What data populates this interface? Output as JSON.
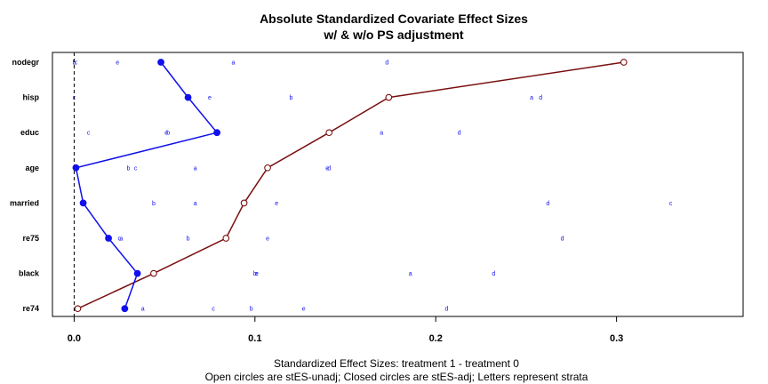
{
  "chart_data": {
    "type": "scatter",
    "title": "Absolute Standardized Covariate Effect Sizes",
    "subtitle": "w/ & w/o PS adjustment",
    "xlabel": "Standardized Effect Sizes: treatment 1 - treatment  0",
    "caption": "Open circles are stES-unadj; Closed circles are stES-adj; Letters represent strata",
    "xlim": [
      -0.012,
      0.37
    ],
    "x_ticks": [
      "0.0",
      "0.1",
      "0.2",
      "0.3"
    ],
    "x_tick_values": [
      0.0,
      0.1,
      0.2,
      0.3
    ],
    "reference_line_x": 0,
    "categories": [
      "nodegr",
      "hisp",
      "educ",
      "age",
      "married",
      "re75",
      "black",
      "re74"
    ],
    "series": [
      {
        "name": "stES-unadj",
        "marker": "open-circle",
        "color": "#7a1010",
        "values": [
          0.304,
          0.174,
          0.141,
          0.107,
          0.094,
          0.084,
          0.044,
          0.002
        ]
      },
      {
        "name": "stES-adj",
        "marker": "closed-circle",
        "color": "#1010ee",
        "values": [
          0.048,
          0.063,
          0.079,
          0.001,
          0.005,
          0.019,
          0.035,
          0.028
        ]
      }
    ],
    "strata": [
      {
        "row": "nodegr",
        "letter": "a",
        "x": 0.088
      },
      {
        "row": "nodegr",
        "letter": "b",
        "x": 0.0
      },
      {
        "row": "nodegr",
        "letter": "c",
        "x": 0.001
      },
      {
        "row": "nodegr",
        "letter": "d",
        "x": 0.173
      },
      {
        "row": "nodegr",
        "letter": "e",
        "x": 0.024
      },
      {
        "row": "hisp",
        "letter": "a",
        "x": 0.253
      },
      {
        "row": "hisp",
        "letter": "b",
        "x": 0.12
      },
      {
        "row": "hisp",
        "letter": "c",
        "x": 0.0
      },
      {
        "row": "hisp",
        "letter": "d",
        "x": 0.258
      },
      {
        "row": "hisp",
        "letter": "e",
        "x": 0.075
      },
      {
        "row": "educ",
        "letter": "a",
        "x": 0.17
      },
      {
        "row": "educ",
        "letter": "b",
        "x": 0.052
      },
      {
        "row": "educ",
        "letter": "c",
        "x": 0.008
      },
      {
        "row": "educ",
        "letter": "d",
        "x": 0.213
      },
      {
        "row": "educ",
        "letter": "e",
        "x": 0.051
      },
      {
        "row": "age",
        "letter": "a",
        "x": 0.067
      },
      {
        "row": "age",
        "letter": "b",
        "x": 0.03
      },
      {
        "row": "age",
        "letter": "c",
        "x": 0.034
      },
      {
        "row": "age",
        "letter": "d",
        "x": 0.141
      },
      {
        "row": "age",
        "letter": "e",
        "x": 0.14
      },
      {
        "row": "married",
        "letter": "a",
        "x": 0.067
      },
      {
        "row": "married",
        "letter": "b",
        "x": 0.044
      },
      {
        "row": "married",
        "letter": "c",
        "x": 0.33
      },
      {
        "row": "married",
        "letter": "d",
        "x": 0.262
      },
      {
        "row": "married",
        "letter": "e",
        "x": 0.112
      },
      {
        "row": "re75",
        "letter": "a",
        "x": 0.026
      },
      {
        "row": "re75",
        "letter": "b",
        "x": 0.063
      },
      {
        "row": "re75",
        "letter": "c",
        "x": 0.025
      },
      {
        "row": "re75",
        "letter": "d",
        "x": 0.27
      },
      {
        "row": "re75",
        "letter": "e",
        "x": 0.107
      },
      {
        "row": "black",
        "letter": "a",
        "x": 0.186
      },
      {
        "row": "black",
        "letter": "b",
        "x": 0.1
      },
      {
        "row": "black",
        "letter": "c",
        "x": 0.101
      },
      {
        "row": "black",
        "letter": "d",
        "x": 0.232
      },
      {
        "row": "black",
        "letter": "e",
        "x": 0.101
      },
      {
        "row": "re74",
        "letter": "a",
        "x": 0.038
      },
      {
        "row": "re74",
        "letter": "b",
        "x": 0.098
      },
      {
        "row": "re74",
        "letter": "c",
        "x": 0.077
      },
      {
        "row": "re74",
        "letter": "d",
        "x": 0.206
      },
      {
        "row": "re74",
        "letter": "e",
        "x": 0.127
      }
    ]
  }
}
